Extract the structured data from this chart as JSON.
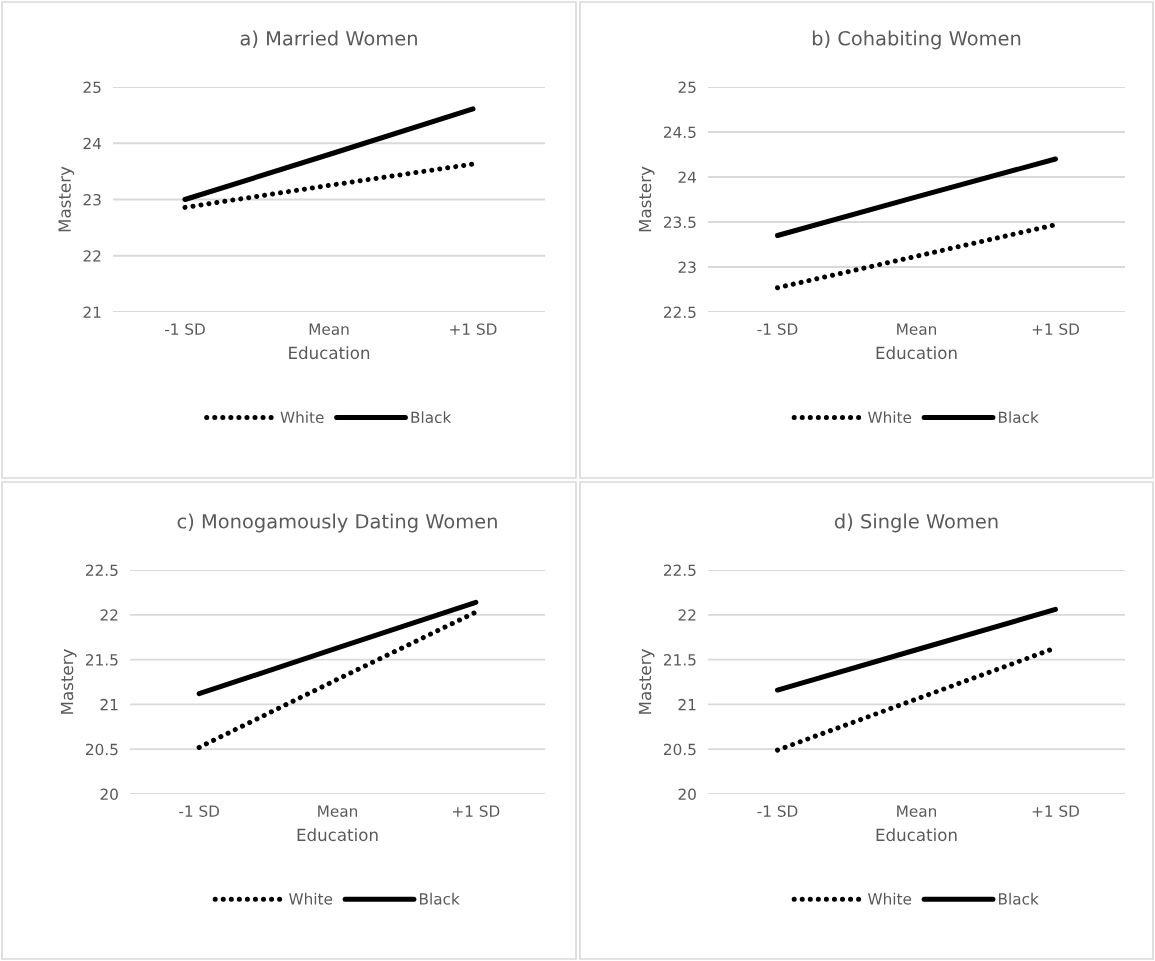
{
  "chart_data": [
    {
      "type": "line",
      "title": "a) Married Women",
      "xlabel": "Education",
      "ylabel": "Mastery",
      "categories": [
        "-1 SD",
        "Mean",
        "+1 SD"
      ],
      "series": [
        {
          "name": "White",
          "color": "#000000",
          "line_style": "dotted",
          "values": [
            22.86,
            23.25,
            23.63
          ]
        },
        {
          "name": "Black",
          "color": "#000000",
          "line_style": "solid",
          "values": [
            23.0,
            23.8,
            24.61
          ]
        }
      ],
      "ylim": [
        21,
        25
      ],
      "yticks": [
        21,
        22,
        23,
        24,
        25
      ],
      "grid": "y",
      "legend": "bottom"
    },
    {
      "type": "line",
      "title": "b) Cohabiting Women",
      "xlabel": "Education",
      "ylabel": "Mastery",
      "categories": [
        "-1 SD",
        "Mean",
        "+1 SD"
      ],
      "series": [
        {
          "name": "White",
          "color": "#000000",
          "line_style": "dotted",
          "values": [
            22.77,
            23.12,
            23.47
          ]
        },
        {
          "name": "Black",
          "color": "#000000",
          "line_style": "solid",
          "values": [
            23.35,
            23.78,
            24.2
          ]
        }
      ],
      "ylim": [
        22.5,
        25
      ],
      "yticks": [
        22.5,
        23,
        23.5,
        24,
        24.5,
        25
      ],
      "grid": "y",
      "legend": "bottom"
    },
    {
      "type": "line",
      "title": "c) Monogamously Dating Women",
      "xlabel": "Education",
      "ylabel": "Mastery",
      "categories": [
        "-1 SD",
        "Mean",
        "+1 SD"
      ],
      "series": [
        {
          "name": "White",
          "color": "#000000",
          "line_style": "dotted",
          "values": [
            20.52,
            21.28,
            22.03
          ]
        },
        {
          "name": "Black",
          "color": "#000000",
          "line_style": "solid",
          "values": [
            21.12,
            21.63,
            22.14
          ]
        }
      ],
      "ylim": [
        20,
        22.5
      ],
      "yticks": [
        20,
        20.5,
        21,
        21.5,
        22,
        22.5
      ],
      "grid": "y",
      "legend": "bottom"
    },
    {
      "type": "line",
      "title": "d) Single Women",
      "xlabel": "Education",
      "ylabel": "Mastery",
      "categories": [
        "-1 SD",
        "Mean",
        "+1 SD"
      ],
      "series": [
        {
          "name": "White",
          "color": "#000000",
          "line_style": "dotted",
          "values": [
            20.49,
            21.06,
            21.63
          ]
        },
        {
          "name": "Black",
          "color": "#000000",
          "line_style": "solid",
          "values": [
            21.16,
            21.61,
            22.06
          ]
        }
      ],
      "ylim": [
        20,
        22.5
      ],
      "yticks": [
        20,
        20.5,
        21,
        21.5,
        22,
        22.5
      ],
      "grid": "y",
      "legend": "bottom"
    }
  ]
}
